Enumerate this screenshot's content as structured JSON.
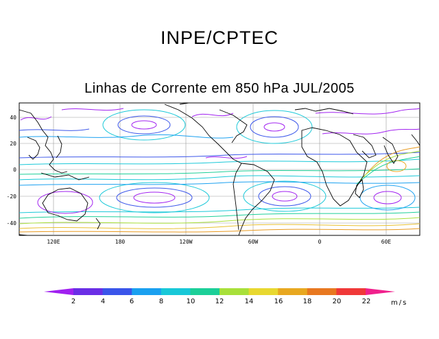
{
  "header": {
    "title": "INPE/CPTEC"
  },
  "map": {
    "title": "Linhas de Corrente em 850 hPa JUL/2005",
    "lat_labels": [
      "40",
      "20",
      "0",
      "-20",
      "-40"
    ],
    "lon_labels": [
      "120E",
      "180",
      "120W",
      "60W",
      "0",
      "60E"
    ]
  },
  "colorbar": {
    "labels": [
      "2",
      "4",
      "6",
      "8",
      "10",
      "12",
      "14",
      "16",
      "18",
      "20",
      "22"
    ],
    "unit": "m/s",
    "colors": [
      "#a020f0",
      "#6a2ee6",
      "#3a55ea",
      "#1aa0f0",
      "#18c8d8",
      "#1ccf98",
      "#a8e03a",
      "#e8d830",
      "#e8a820",
      "#e87820",
      "#f03838",
      "#f0208c"
    ]
  }
}
